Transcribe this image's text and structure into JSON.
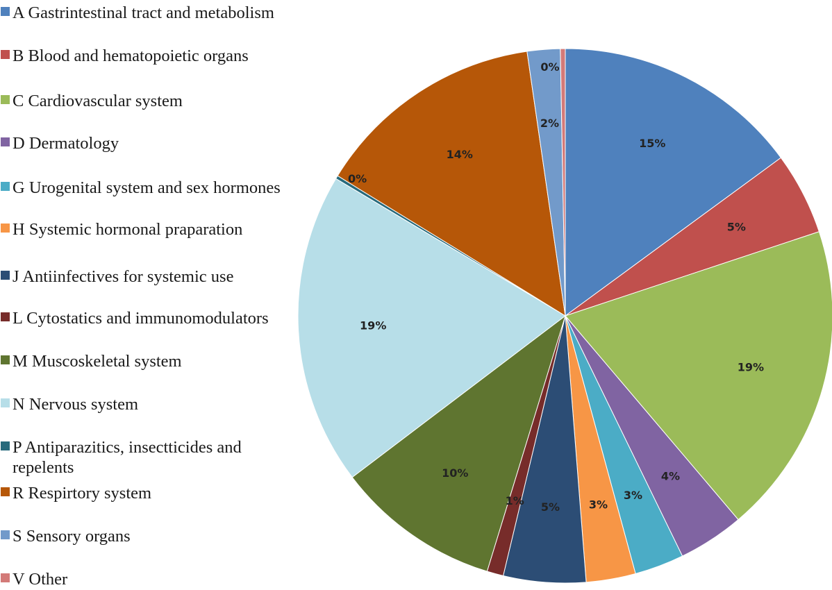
{
  "chart_data": {
    "type": "pie",
    "title": "",
    "legend_position": "left",
    "slices": [
      {
        "category": "A Gastrintestinal tract and metabolism",
        "value": 15,
        "label": "15%",
        "color": "#4F81BD"
      },
      {
        "category": "B Blood and hematopoietic organs",
        "value": 5,
        "label": "5%",
        "color": "#C0504D"
      },
      {
        "category": "C Cardiovascular system",
        "value": 19,
        "label": "19%",
        "color": "#9BBB59"
      },
      {
        "category": "D Dermatology",
        "value": 4,
        "label": "4%",
        "color": "#8064A2"
      },
      {
        "category": "G Urogenital system and sex hormones",
        "value": 3,
        "label": "3%",
        "color": "#4BACC6"
      },
      {
        "category": "H Systemic hormonal praparation",
        "value": 3,
        "label": "3%",
        "color": "#F79646"
      },
      {
        "category": "J Antiinfectives for systemic use",
        "value": 5,
        "label": "5%",
        "color": "#2C4D75"
      },
      {
        "category": "L Cytostatics and immunomodulators",
        "value": 1,
        "label": "1%",
        "color": "#772C2A"
      },
      {
        "category": "M Muscoskeletal system",
        "value": 10,
        "label": "10%",
        "color": "#5F7530"
      },
      {
        "category": "N Nervous system",
        "value": 19,
        "label": "19%",
        "color": "#B7DEE8"
      },
      {
        "category": "P Antiparazitics, insectticides and repelents",
        "value": 0.2,
        "label": "0%",
        "color": "#276A7C"
      },
      {
        "category": "R Respirtory system",
        "value": 14,
        "label": "14%",
        "color": "#B65708"
      },
      {
        "category": "S Sensory organs",
        "value": 2,
        "label": "2%",
        "color": "#729ACA"
      },
      {
        "category": "V Other",
        "value": 0.3,
        "label": "0%",
        "color": "#D37A78"
      }
    ]
  }
}
